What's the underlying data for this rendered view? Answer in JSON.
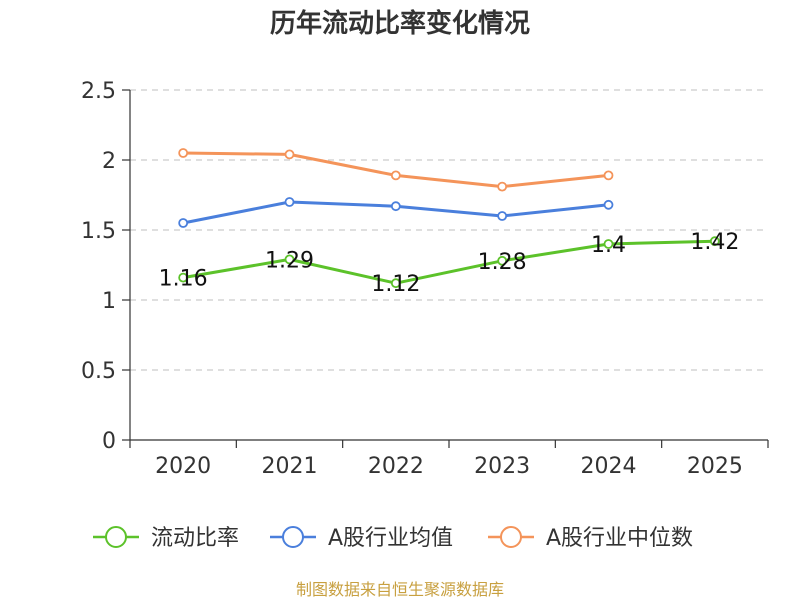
{
  "chart_data": {
    "type": "line",
    "title": "历年流动比率变化情况",
    "categories": [
      "2020",
      "2021",
      "2022",
      "2023",
      "2024",
      "2025"
    ],
    "ylim": [
      0,
      2.5
    ],
    "yticks": [
      "0",
      "0.5",
      "1",
      "1.5",
      "2",
      "2.5"
    ],
    "grid": true,
    "legend_position": "bottom",
    "series": [
      {
        "name": "流动比率",
        "color": "#5cc22a",
        "values": [
          1.16,
          1.29,
          1.12,
          1.28,
          1.4,
          1.42
        ],
        "labels": [
          "1.16",
          "1.29",
          "1.12",
          "1.28",
          "1.4",
          "1.42"
        ]
      },
      {
        "name": "A股行业均值",
        "color": "#4a7fdc",
        "values": [
          1.55,
          1.7,
          1.67,
          1.6,
          1.68,
          null
        ]
      },
      {
        "name": "A股行业中位数",
        "color": "#f4945a",
        "values": [
          2.05,
          2.04,
          1.89,
          1.81,
          1.89,
          null
        ]
      }
    ]
  },
  "source_text": "制图数据来自恒生聚源数据库"
}
